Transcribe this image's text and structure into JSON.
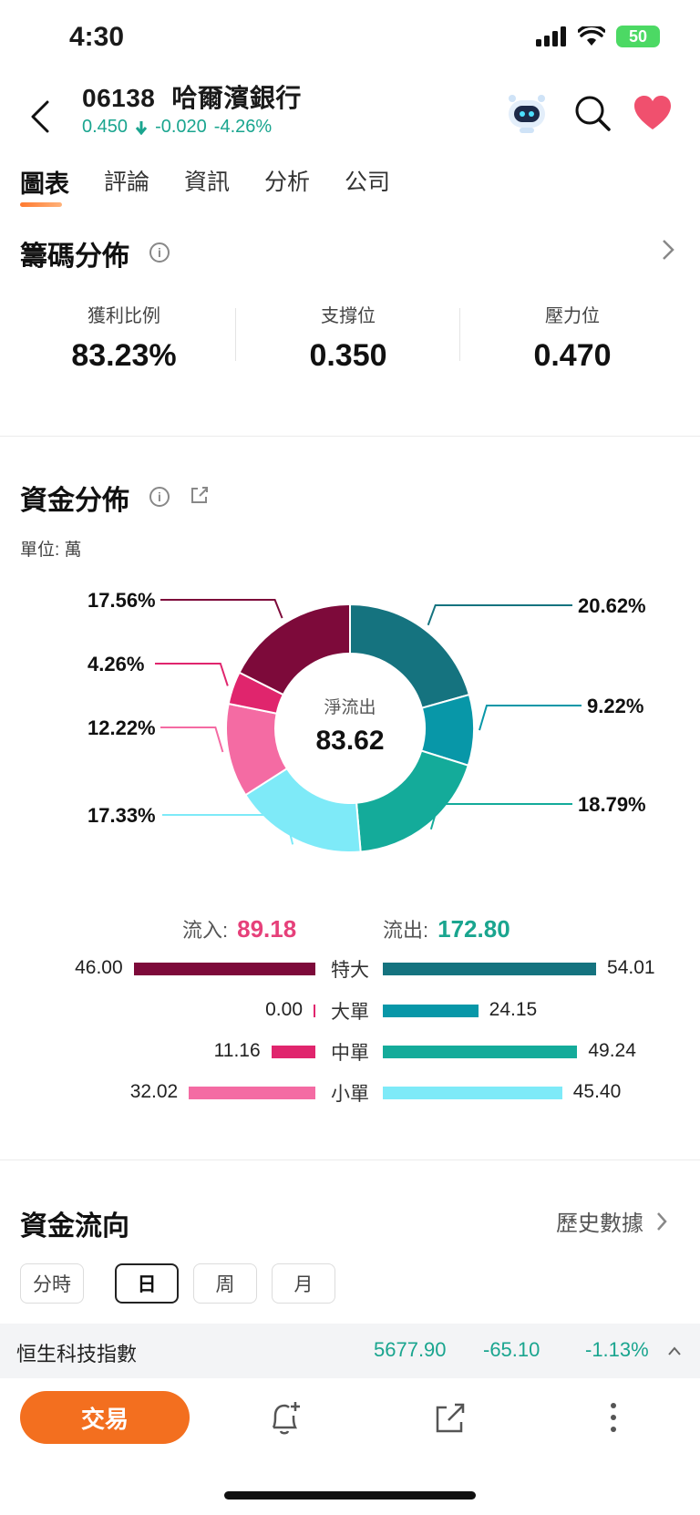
{
  "status_bar": {
    "time": "4:30",
    "battery": "50"
  },
  "header": {
    "code": "06138",
    "name": "哈爾濱銀行",
    "price": "0.450",
    "change": "-0.020",
    "change_pct": "-4.26%",
    "quote_color": "#1aa58f"
  },
  "tabs": [
    "圖表",
    "評論",
    "資訊",
    "分析",
    "公司"
  ],
  "chips": {
    "title": "籌碼分佈",
    "stats": [
      {
        "label": "獲利比例",
        "value": "83.23%"
      },
      {
        "label": "支撐位",
        "value": "0.350"
      },
      {
        "label": "壓力位",
        "value": "0.470"
      }
    ]
  },
  "fund": {
    "title": "資金分佈",
    "unit": "單位:  萬",
    "center_label": "淨流出",
    "center_value": "83.62",
    "inflow_label": "流入:",
    "inflow_value": "89.18",
    "outflow_label": "流出:",
    "outflow_value": "172.80",
    "rows": [
      {
        "cat": "特大",
        "in": "46.00",
        "out": "54.01"
      },
      {
        "cat": "大單",
        "in": "0.00",
        "out": "24.15"
      },
      {
        "cat": "中單",
        "in": "11.16",
        "out": "49.24"
      },
      {
        "cat": "小單",
        "in": "32.02",
        "out": "45.40"
      }
    ]
  },
  "chart_data": {
    "type": "pie",
    "slices": [
      {
        "label": "20.62%",
        "value": 20.62,
        "color": "#15737f"
      },
      {
        "label": "9.22%",
        "value": 9.22,
        "color": "#0897a8"
      },
      {
        "label": "18.79%",
        "value": 18.79,
        "color": "#14ab9a"
      },
      {
        "label": "17.33%",
        "value": 17.33,
        "color": "#7eeaf8"
      },
      {
        "label": "12.22%",
        "value": 12.22,
        "color": "#f46ba3"
      },
      {
        "label": "4.26%",
        "value": 4.26,
        "color": "#e0256d"
      },
      {
        "label": "17.56%",
        "value": 17.56,
        "color": "#7d0a3a"
      }
    ],
    "inflow": [
      46.0,
      0.0,
      11.16,
      32.02
    ],
    "outflow": [
      54.01,
      24.15,
      49.24,
      45.4
    ],
    "inflow_colors": [
      "#7d0a3a",
      "#e0256d",
      "#e0256d",
      "#f46ba3"
    ],
    "outflow_colors": [
      "#15737f",
      "#0897a8",
      "#14ab9a",
      "#7eeaf8"
    ]
  },
  "flow": {
    "title": "資金流向",
    "history_label": "歷史數據",
    "periods": [
      "分時",
      "日",
      "周",
      "月"
    ],
    "active_period": "日"
  },
  "index_bar": {
    "name": "恒生科技指數",
    "value": "5677.90",
    "change": "-65.10",
    "change_pct": "-1.13%"
  },
  "bottom": {
    "trade_label": "交易"
  }
}
